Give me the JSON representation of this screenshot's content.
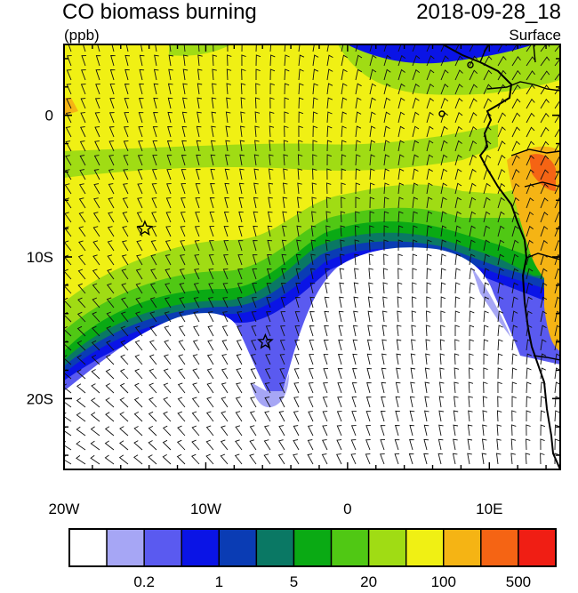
{
  "header": {
    "title": "CO biomass burning",
    "units": "(ppb)",
    "datetime": "2018-09-28_18",
    "level": "Surface"
  },
  "map": {
    "lon_range": [
      -20,
      15
    ],
    "lat_range": [
      -25,
      5
    ],
    "x_tick_labels": [
      "20W",
      "10W",
      "0",
      "10E"
    ],
    "y_tick_labels": [
      "0",
      "10S",
      "20S"
    ],
    "markers": [
      {
        "type": "star",
        "lon": -14.3,
        "lat": -8.0
      },
      {
        "type": "star",
        "lon": -5.8,
        "lat": -16.0
      }
    ]
  },
  "colorbar": {
    "colors": [
      "#ffffff",
      "#a6a6f5",
      "#5a5af0",
      "#0a14e6",
      "#0a3cb4",
      "#0a7864",
      "#0aaa14",
      "#50c814",
      "#a0dc14",
      "#f0f014",
      "#f5b414",
      "#f56414",
      "#f01e14"
    ],
    "labels": [
      "0.2",
      "1",
      "5",
      "20",
      "100",
      "500"
    ]
  }
}
